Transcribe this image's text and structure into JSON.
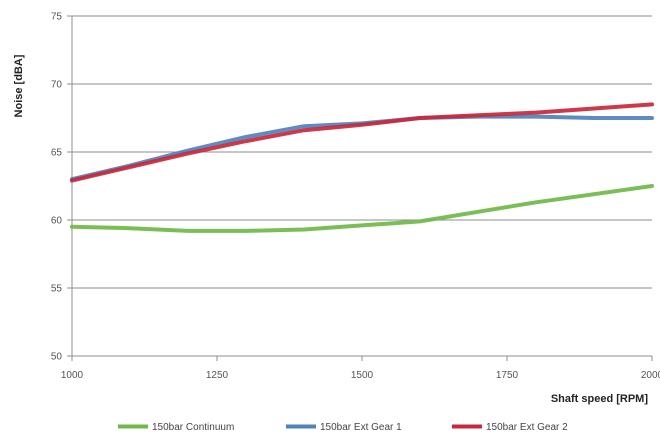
{
  "chart_data": {
    "type": "line",
    "xlabel": "Shaft speed [RPM]",
    "ylabel": "Noise [dBA]",
    "xlim": [
      1000,
      2000
    ],
    "ylim": [
      50,
      75
    ],
    "x_ticks": [
      1000,
      1250,
      1500,
      1750,
      2000
    ],
    "x_tick_labels": [
      "1000",
      "1250",
      "1500",
      "1750",
      "2000"
    ],
    "y_ticks": [
      50,
      55,
      60,
      65,
      70,
      75
    ],
    "y_tick_labels": [
      "50",
      "55",
      "60",
      "65",
      "70",
      "75"
    ],
    "grid": "horizontal",
    "legend_position": "bottom",
    "series": [
      {
        "name": "150bar Continuum",
        "color": "#70b848",
        "x": [
          1000,
          1100,
          1200,
          1300,
          1400,
          1500,
          1600,
          1700,
          1800,
          1900,
          2000
        ],
        "y": [
          59.5,
          59.4,
          59.2,
          59.2,
          59.3,
          59.6,
          59.9,
          60.6,
          61.3,
          61.9,
          62.5
        ]
      },
      {
        "name": "150bar Ext Gear 1",
        "color": "#4f81bd",
        "x": [
          1000,
          1100,
          1200,
          1300,
          1400,
          1500,
          1600,
          1700,
          1800,
          1900,
          2000
        ],
        "y": [
          63.0,
          64.0,
          65.1,
          66.1,
          66.9,
          67.1,
          67.5,
          67.6,
          67.6,
          67.5,
          67.5
        ]
      },
      {
        "name": "150bar Ext Gear 2",
        "color": "#c8283c",
        "x": [
          1000,
          1100,
          1200,
          1300,
          1400,
          1500,
          1600,
          1700,
          1800,
          1900,
          2000
        ],
        "y": [
          62.9,
          63.9,
          64.9,
          65.8,
          66.6,
          67.0,
          67.5,
          67.7,
          67.9,
          68.2,
          68.5
        ]
      }
    ]
  }
}
